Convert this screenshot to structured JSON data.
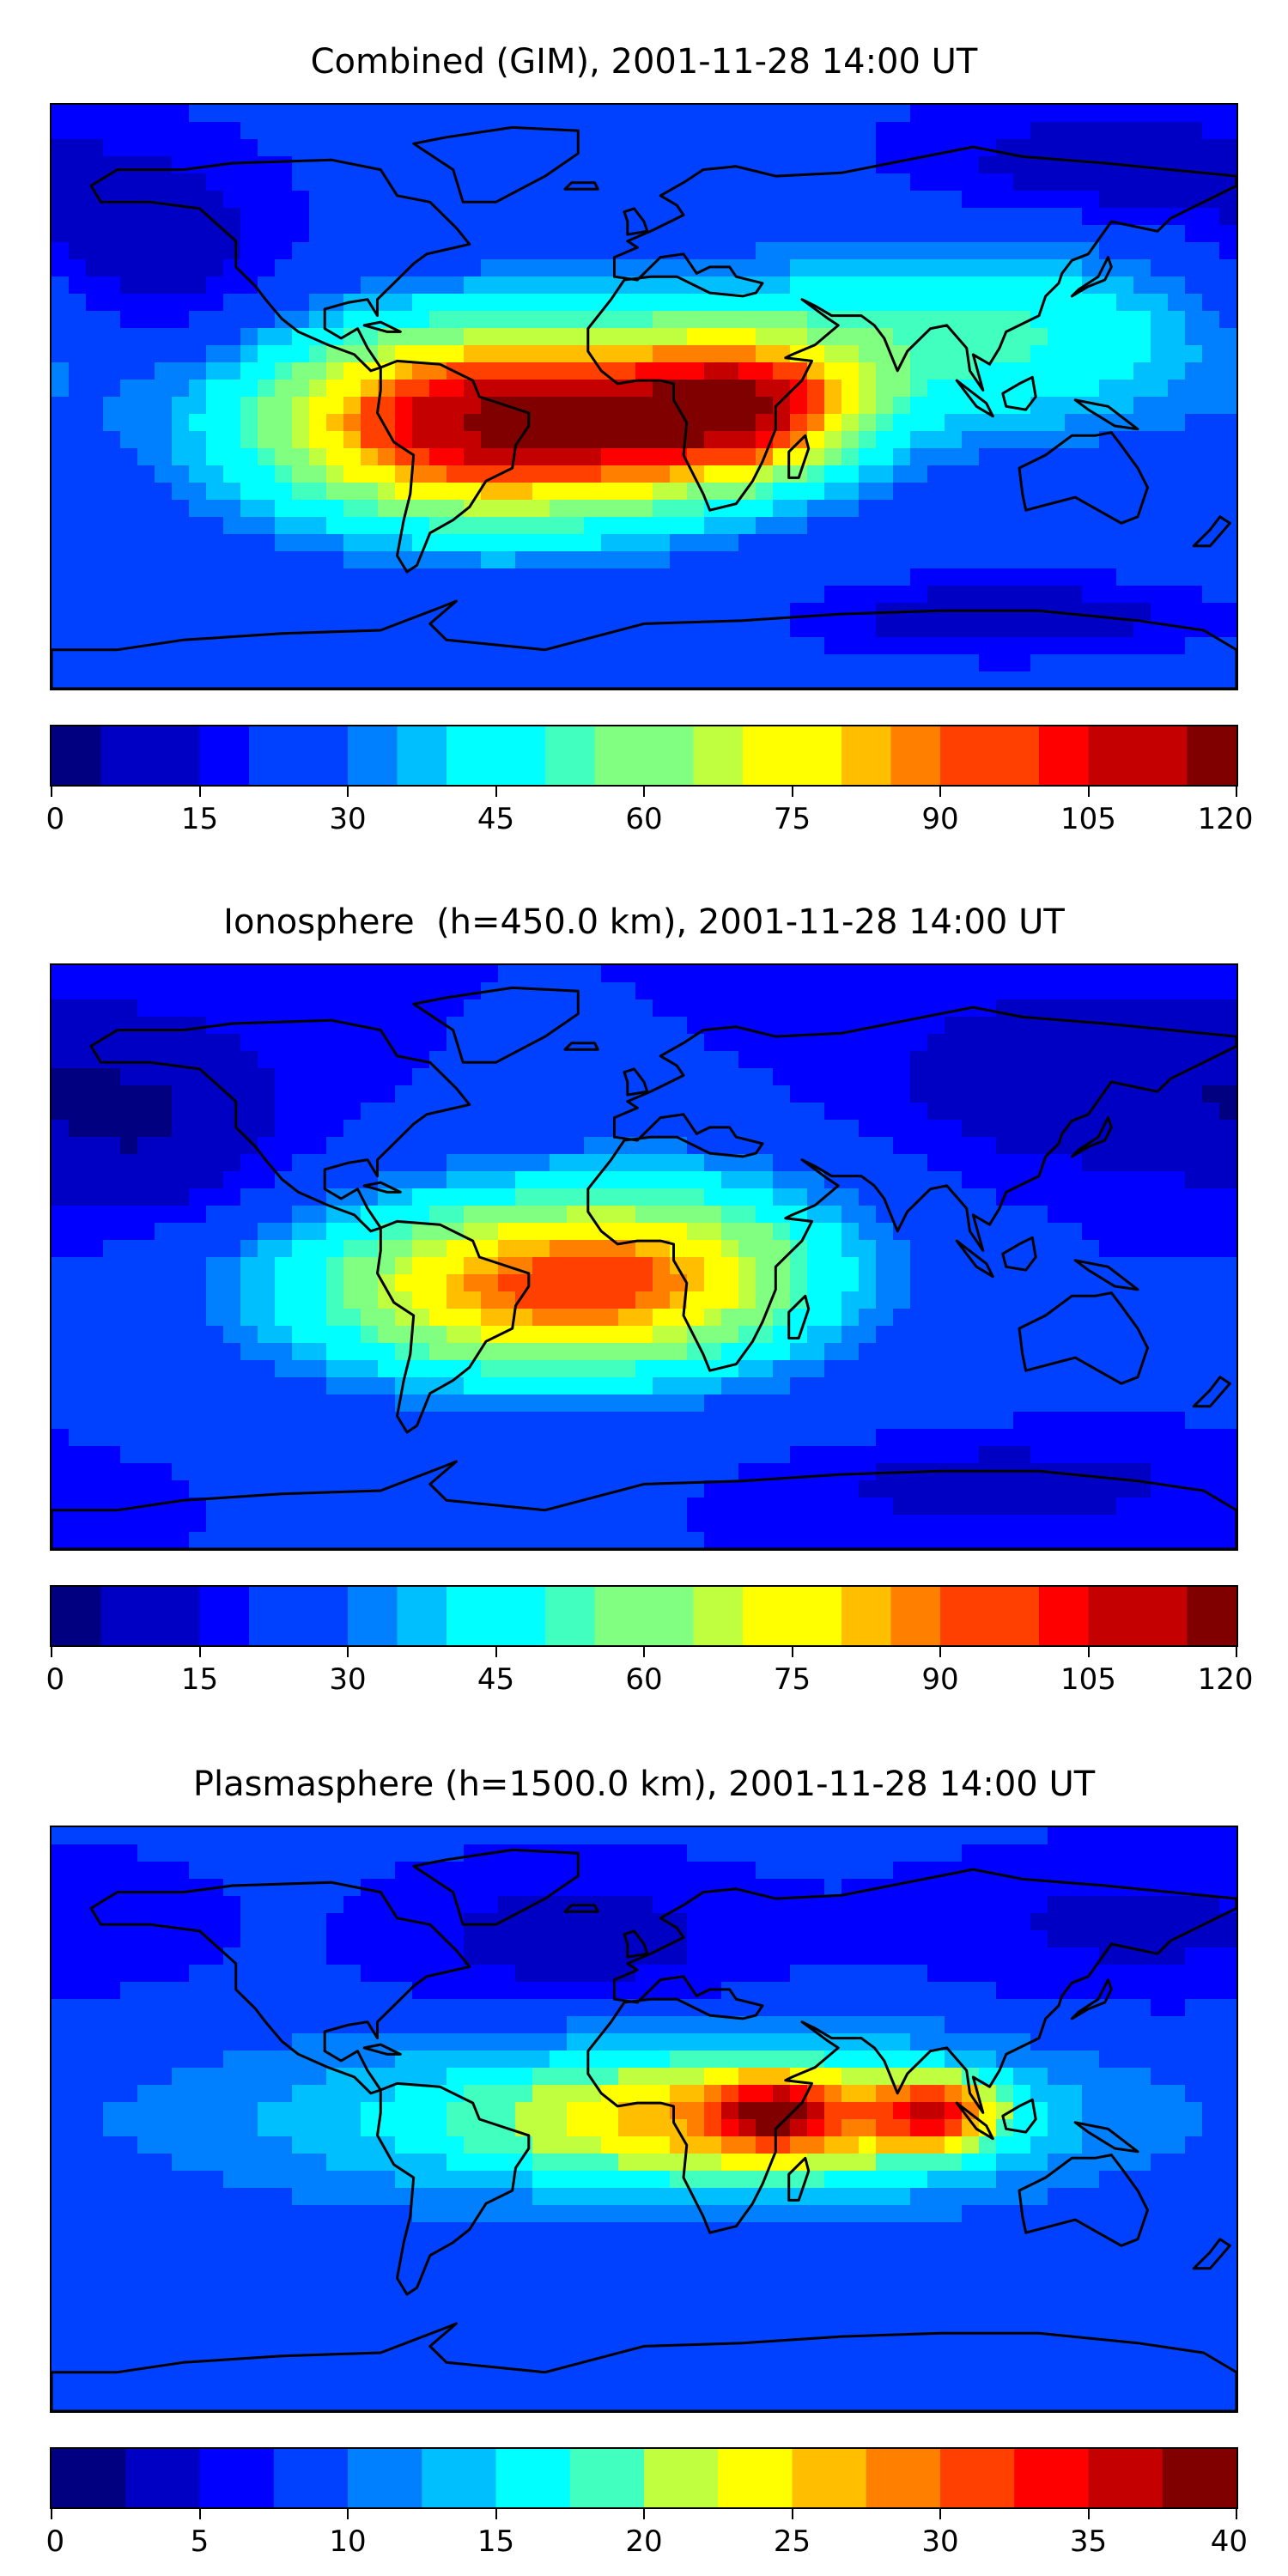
{
  "panels": [
    {
      "title": "Combined (GIM), 2001-11-28 14:00 UT",
      "colorbar": {
        "min": 0,
        "max": 120,
        "step": 5,
        "ticks": [
          "0",
          "15",
          "30",
          "45",
          "60",
          "75",
          "90",
          "105",
          "120"
        ]
      },
      "field": {
        "base_value": 22,
        "regions": [
          {
            "lon": -45,
            "lat": -8,
            "rlon": 70,
            "rlat": 30,
            "peak": 95
          },
          {
            "lon": 15,
            "lat": -5,
            "rlon": 35,
            "rlat": 22,
            "peak": 35
          },
          {
            "lon": 40,
            "lat": -3,
            "rlon": 30,
            "rlat": 20,
            "peak": 40
          },
          {
            "lon": 100,
            "lat": 18,
            "rlon": 80,
            "rlat": 30,
            "peak": 30
          },
          {
            "lon": -150,
            "lat": 40,
            "rlon": 40,
            "rlat": 30,
            "peak": -14
          },
          {
            "lon": 140,
            "lat": 70,
            "rlon": 60,
            "rlat": 20,
            "peak": -12
          },
          {
            "lon": 110,
            "lat": -68,
            "rlon": 50,
            "rlat": 10,
            "peak": -15
          }
        ]
      }
    },
    {
      "title": "Ionosphere  (h=450.0 km), 2001-11-28 14:00 UT",
      "colorbar": {
        "min": 0,
        "max": 120,
        "step": 5,
        "ticks": [
          "0",
          "15",
          "30",
          "45",
          "60",
          "75",
          "90",
          "105",
          "120"
        ]
      },
      "field": {
        "base_value": 20,
        "regions": [
          {
            "lon": -35,
            "lat": -10,
            "rlon": 75,
            "rlat": 28,
            "peak": 62
          },
          {
            "lon": 10,
            "lat": 0,
            "rlon": 55,
            "rlat": 30,
            "peak": 25
          },
          {
            "lon": -150,
            "lat": 40,
            "rlon": 40,
            "rlat": 30,
            "peak": -14
          },
          {
            "lon": 140,
            "lat": 55,
            "rlon": 60,
            "rlat": 25,
            "peak": -14
          },
          {
            "lon": 110,
            "lat": -70,
            "rlon": 50,
            "rlat": 10,
            "peak": -12
          }
        ]
      }
    },
    {
      "title": "Plasmasphere (h=1500.0 km), 2001-11-28 14:00 UT",
      "colorbar": {
        "min": 0,
        "max": 40,
        "step": 2.5,
        "ticks": [
          "0",
          "5",
          "10",
          "15",
          "20",
          "25",
          "30",
          "35",
          "40"
        ]
      },
      "field": {
        "base_value": 8,
        "regions": [
          {
            "lon": 40,
            "lat": 0,
            "rlon": 80,
            "rlat": 22,
            "peak": 18
          },
          {
            "lon": 40,
            "lat": 2,
            "rlon": 18,
            "rlat": 10,
            "peak": 14
          },
          {
            "lon": 88,
            "lat": 2,
            "rlon": 18,
            "rlat": 10,
            "peak": 16
          },
          {
            "lon": -60,
            "lat": 0,
            "rlon": 90,
            "rlat": 25,
            "peak": 6
          },
          {
            "lon": -20,
            "lat": 55,
            "rlon": 50,
            "rlat": 20,
            "peak": -5
          },
          {
            "lon": 150,
            "lat": 60,
            "rlon": 60,
            "rlat": 20,
            "peak": -4
          }
        ]
      }
    }
  ],
  "colormap": [
    "#000080",
    "#0000c4",
    "#0000ff",
    "#0040ff",
    "#0080ff",
    "#00bfff",
    "#00ffff",
    "#40ffbf",
    "#80ff80",
    "#bfff40",
    "#ffff00",
    "#ffbf00",
    "#ff8000",
    "#ff4000",
    "#ff0000",
    "#c40000",
    "#800000"
  ],
  "coastline_color": "#000000",
  "continents": {
    "north-america": [
      [
        -168,
        65
      ],
      [
        -160,
        70
      ],
      [
        -140,
        70
      ],
      [
        -125,
        72
      ],
      [
        -95,
        73
      ],
      [
        -80,
        70
      ],
      [
        -75,
        62
      ],
      [
        -65,
        60
      ],
      [
        -57,
        52
      ],
      [
        -53,
        47
      ],
      [
        -66,
        44
      ],
      [
        -70,
        41
      ],
      [
        -76,
        35
      ],
      [
        -81,
        30
      ],
      [
        -81,
        25
      ],
      [
        -84,
        30
      ],
      [
        -90,
        29
      ],
      [
        -97,
        27
      ],
      [
        -97,
        21
      ],
      [
        -92,
        18
      ],
      [
        -87,
        21
      ],
      [
        -84,
        15
      ],
      [
        -80,
        9
      ],
      [
        -83,
        8
      ],
      [
        -88,
        13
      ],
      [
        -96,
        16
      ],
      [
        -105,
        20
      ],
      [
        -110,
        24
      ],
      [
        -115,
        30
      ],
      [
        -118,
        34
      ],
      [
        -124,
        40
      ],
      [
        -124,
        48
      ],
      [
        -135,
        58
      ],
      [
        -150,
        60
      ],
      [
        -165,
        60
      ]
    ],
    "greenland": [
      [
        -55,
        60
      ],
      [
        -45,
        60
      ],
      [
        -30,
        68
      ],
      [
        -20,
        75
      ],
      [
        -20,
        82
      ],
      [
        -40,
        83
      ],
      [
        -60,
        80
      ],
      [
        -70,
        78
      ],
      [
        -58,
        70
      ]
    ],
    "south-america": [
      [
        -80,
        9
      ],
      [
        -75,
        11
      ],
      [
        -62,
        10
      ],
      [
        -52,
        5
      ],
      [
        -50,
        0
      ],
      [
        -35,
        -5
      ],
      [
        -35,
        -9
      ],
      [
        -39,
        -15
      ],
      [
        -40,
        -22
      ],
      [
        -48,
        -26
      ],
      [
        -53,
        -34
      ],
      [
        -58,
        -38
      ],
      [
        -65,
        -42
      ],
      [
        -67,
        -47
      ],
      [
        -69,
        -52
      ],
      [
        -72,
        -54
      ],
      [
        -75,
        -49
      ],
      [
        -73,
        -38
      ],
      [
        -71,
        -30
      ],
      [
        -70,
        -18
      ],
      [
        -76,
        -14
      ],
      [
        -81,
        -5
      ],
      [
        -80,
        2
      ]
    ],
    "africa-eurasia": [
      [
        -17,
        14
      ],
      [
        -17,
        21
      ],
      [
        -10,
        30
      ],
      [
        -6,
        36
      ],
      [
        2,
        37
      ],
      [
        10,
        37
      ],
      [
        20,
        32
      ],
      [
        30,
        31
      ],
      [
        34,
        32
      ],
      [
        36,
        35
      ],
      [
        28,
        37
      ],
      [
        26,
        40
      ],
      [
        20,
        40
      ],
      [
        16,
        38
      ],
      [
        12,
        44
      ],
      [
        5,
        43
      ],
      [
        -2,
        36
      ],
      [
        -9,
        37
      ],
      [
        -9,
        43
      ],
      [
        -2,
        46
      ],
      [
        -5,
        48
      ],
      [
        2,
        51
      ],
      [
        8,
        54
      ],
      [
        12,
        56
      ],
      [
        10,
        59
      ],
      [
        5,
        62
      ],
      [
        12,
        66
      ],
      [
        18,
        70
      ],
      [
        28,
        71
      ],
      [
        40,
        68
      ],
      [
        60,
        69
      ],
      [
        80,
        73
      ],
      [
        100,
        77
      ],
      [
        115,
        74
      ],
      [
        140,
        72
      ],
      [
        160,
        70
      ],
      [
        180,
        68
      ],
      [
        180,
        65
      ],
      [
        170,
        60
      ],
      [
        160,
        55
      ],
      [
        156,
        51
      ],
      [
        142,
        54
      ],
      [
        135,
        44
      ],
      [
        130,
        42
      ],
      [
        127,
        38
      ],
      [
        126,
        35
      ],
      [
        122,
        31
      ],
      [
        120,
        25
      ],
      [
        110,
        20
      ],
      [
        108,
        15
      ],
      [
        105,
        10
      ],
      [
        100,
        13
      ],
      [
        103,
        2
      ],
      [
        99,
        8
      ],
      [
        98,
        15
      ],
      [
        92,
        22
      ],
      [
        87,
        21
      ],
      [
        80,
        14
      ],
      [
        77,
        8
      ],
      [
        73,
        18
      ],
      [
        70,
        22
      ],
      [
        66,
        25
      ],
      [
        57,
        25
      ],
      [
        52,
        28
      ],
      [
        48,
        30
      ],
      [
        56,
        24
      ],
      [
        59,
        22
      ],
      [
        52,
        16
      ],
      [
        45,
        13
      ],
      [
        43,
        12
      ],
      [
        51,
        11
      ],
      [
        48,
        5
      ],
      [
        40,
        -3
      ],
      [
        40,
        -10
      ],
      [
        36,
        -20
      ],
      [
        33,
        -26
      ],
      [
        28,
        -33
      ],
      [
        20,
        -35
      ],
      [
        18,
        -30
      ],
      [
        12,
        -18
      ],
      [
        13,
        -8
      ],
      [
        9,
        -1
      ],
      [
        9,
        4
      ],
      [
        5,
        5
      ],
      [
        -2,
        5
      ],
      [
        -8,
        4
      ],
      [
        -13,
        8
      ]
    ],
    "arabian-sea-gap": [],
    "madagascar": [
      [
        44,
        -25
      ],
      [
        47,
        -25
      ],
      [
        50,
        -16
      ],
      [
        49,
        -12
      ],
      [
        44,
        -17
      ]
    ],
    "australia": [
      [
        114,
        -22
      ],
      [
        122,
        -18
      ],
      [
        130,
        -12
      ],
      [
        137,
        -12
      ],
      [
        142,
        -11
      ],
      [
        145,
        -15
      ],
      [
        150,
        -22
      ],
      [
        153,
        -28
      ],
      [
        150,
        -37
      ],
      [
        145,
        -39
      ],
      [
        138,
        -35
      ],
      [
        131,
        -31
      ],
      [
        116,
        -35
      ],
      [
        115,
        -30
      ]
    ],
    "antarctica": [
      [
        -180,
        -78
      ],
      [
        -160,
        -78
      ],
      [
        -140,
        -75
      ],
      [
        -110,
        -73
      ],
      [
        -80,
        -72
      ],
      [
        -62,
        -65
      ],
      [
        -57,
        -63
      ],
      [
        -65,
        -70
      ],
      [
        -60,
        -75
      ],
      [
        -30,
        -78
      ],
      [
        0,
        -70
      ],
      [
        30,
        -69
      ],
      [
        60,
        -67
      ],
      [
        90,
        -66
      ],
      [
        120,
        -66
      ],
      [
        150,
        -69
      ],
      [
        170,
        -72
      ],
      [
        180,
        -78
      ],
      [
        180,
        -90
      ],
      [
        -180,
        -90
      ]
    ],
    "britain": [
      [
        -5,
        50
      ],
      [
        1,
        51
      ],
      [
        0,
        54
      ],
      [
        -3,
        58
      ],
      [
        -6,
        57
      ],
      [
        -5,
        54
      ]
    ],
    "japan": [
      [
        130,
        31
      ],
      [
        135,
        34
      ],
      [
        140,
        36
      ],
      [
        142,
        40
      ],
      [
        141,
        43
      ],
      [
        138,
        37
      ],
      [
        132,
        33
      ]
    ],
    "new-zealand": [
      [
        172,
        -41
      ],
      [
        175,
        -37
      ],
      [
        178,
        -39
      ],
      [
        172,
        -46
      ],
      [
        167,
        -46
      ]
    ],
    "borneo": [
      [
        109,
        1
      ],
      [
        114,
        4
      ],
      [
        118,
        6
      ],
      [
        119,
        0
      ],
      [
        116,
        -4
      ],
      [
        110,
        -3
      ]
    ],
    "sumatra": [
      [
        95,
        5
      ],
      [
        104,
        -2
      ],
      [
        106,
        -6
      ],
      [
        101,
        -3
      ]
    ],
    "new-guinea": [
      [
        131,
        -1
      ],
      [
        141,
        -3
      ],
      [
        150,
        -10
      ],
      [
        143,
        -9
      ],
      [
        135,
        -4
      ]
    ],
    "iceland": [
      [
        -24,
        64
      ],
      [
        -14,
        64
      ],
      [
        -15,
        66
      ],
      [
        -22,
        66
      ]
    ],
    "cuba": [
      [
        -85,
        22
      ],
      [
        -80,
        23
      ],
      [
        -74,
        20
      ],
      [
        -78,
        20
      ]
    ]
  }
}
